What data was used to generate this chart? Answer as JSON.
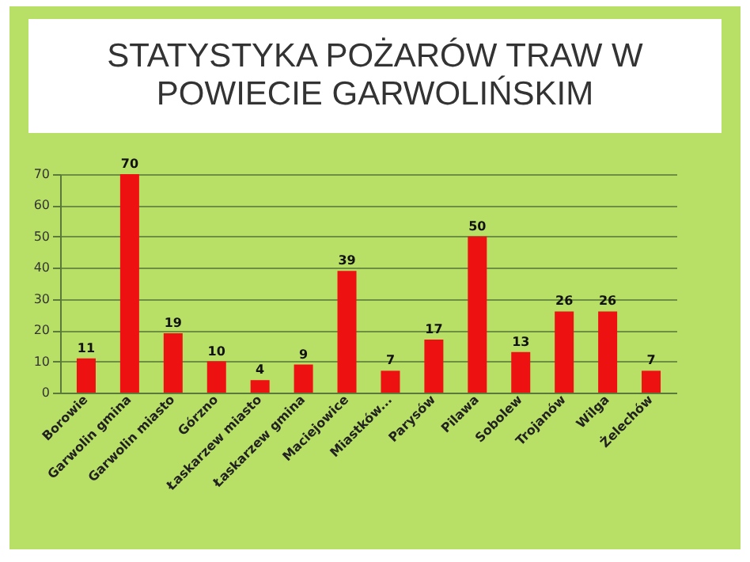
{
  "chart_data": {
    "type": "bar",
    "title": "STATYSTYKA POŻARÓW TRAW W POWIECIE GARWOLIŃSKIM",
    "categories": [
      "Borowie",
      "Garwolin gmina",
      "Garwolin miasto",
      "Górzno",
      "Łaskarzew miasto",
      "Łaskarzew gmina",
      "Maciejowice",
      "Miastków...",
      "Parysów",
      "Pilawa",
      "Sobolew",
      "Trojanów",
      "Wilga",
      "Żelechów"
    ],
    "values": [
      11,
      70,
      19,
      10,
      4,
      9,
      39,
      7,
      17,
      50,
      13,
      26,
      26,
      7
    ],
    "color": "#ee1111",
    "ylim": [
      0,
      70
    ],
    "yticks": [
      0,
      10,
      20,
      30,
      40,
      50,
      60,
      70
    ],
    "grid": "y",
    "data_labels": true
  }
}
